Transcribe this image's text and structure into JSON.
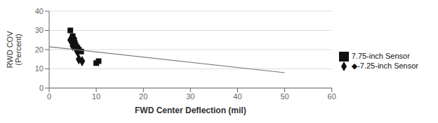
{
  "chart_data": {
    "type": "scatter",
    "title": "",
    "xlabel": "FWD Center Deflection (mil)",
    "ylabel": "RWD COV\n(Percent)",
    "xlim": [
      0,
      60
    ],
    "ylim": [
      0,
      40
    ],
    "xticks": [
      0,
      10,
      20,
      30,
      40,
      50,
      60
    ],
    "yticks": [
      0,
      10,
      20,
      30,
      40
    ],
    "grid": "y",
    "legend": "right",
    "series": [
      {
        "name": "◆-7.25-inch Sensor",
        "type": "scatter",
        "marker": "diamond",
        "color": "#111111",
        "x": [
          4.5,
          5.0,
          5.2,
          5.5,
          5.8,
          6.0,
          6.3,
          7.0
        ],
        "values": [
          25,
          22,
          26,
          24,
          20,
          19,
          15,
          14
        ]
      },
      {
        "name": "7.75-inch Sensor",
        "type": "scatter",
        "marker": "square",
        "color": "#111111",
        "x": [
          4.5,
          5.0,
          5.3,
          5.7,
          6.0,
          6.3,
          6.8,
          10.0,
          10.5
        ],
        "values": [
          30,
          27,
          25,
          22,
          21,
          20,
          19,
          13,
          14
        ]
      },
      {
        "type": "line",
        "line_style": "solid",
        "color": "#777777",
        "x": [
          0,
          50
        ],
        "values": [
          21.5,
          8.0
        ]
      }
    ]
  }
}
